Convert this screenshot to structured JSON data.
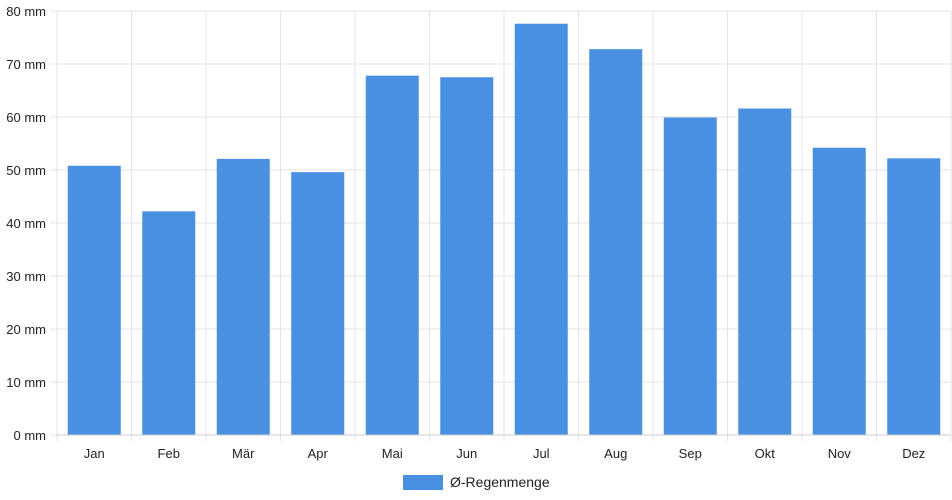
{
  "chart_data": {
    "type": "bar",
    "categories": [
      "Jan",
      "Feb",
      "Mär",
      "Apr",
      "Mai",
      "Jun",
      "Jul",
      "Aug",
      "Sep",
      "Okt",
      "Nov",
      "Dez"
    ],
    "series": [
      {
        "name": "Ø-Regenmenge",
        "values": [
          50.8,
          42.2,
          52.1,
          49.6,
          67.8,
          67.5,
          77.6,
          72.8,
          59.9,
          61.6,
          54.2,
          52.2
        ],
        "color": "#4a90e2"
      }
    ],
    "y_ticks": [
      "0 mm",
      "10 mm",
      "20 mm",
      "30 mm",
      "40 mm",
      "50 mm",
      "60 mm",
      "70 mm",
      "80 mm"
    ],
    "ylim": [
      0,
      80
    ],
    "y_step": 10,
    "grid": true,
    "legend_position": "bottom-center",
    "title": "",
    "xlabel": "",
    "ylabel": ""
  }
}
